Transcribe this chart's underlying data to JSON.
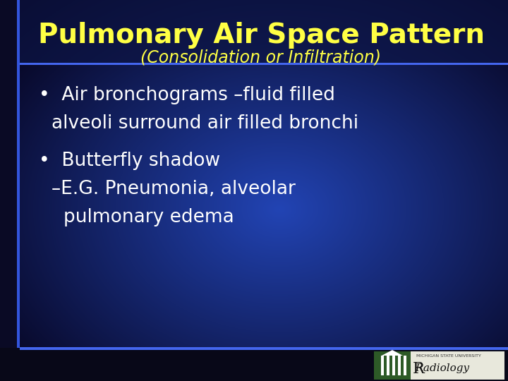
{
  "title": "Pulmonary Air Space Pattern",
  "subtitle": "(Consolidation or Infiltration)",
  "bullet1_line1": "•  Air bronchograms –fluid filled",
  "bullet1_line2": "     alveoli surround air filled bronchi",
  "bullet2_line1": "•  Butterfly shadow",
  "bullet2_line2": "     –E.G. Pneumonia, alveolar",
  "bullet2_line3": "        pulmonary edema",
  "bg_main": "#2233aa",
  "bg_dark": "#080820",
  "bg_mid": "#1a2880",
  "title_color": "#ffff44",
  "subtitle_color": "#ffff44",
  "body_color": "#ffffff",
  "border_color": "#4466ff",
  "bottom_bar_color": "#2d5a27",
  "title_fontsize": 28,
  "subtitle_fontsize": 17,
  "body_fontsize": 19,
  "msu_text": "MICHIGAN STATE UNIVERSITY",
  "radiology_text": "Radiology",
  "left_strip_color": "#0a0a30",
  "sep_line_color": "#4466ee",
  "left_accent_color": "#3355dd"
}
